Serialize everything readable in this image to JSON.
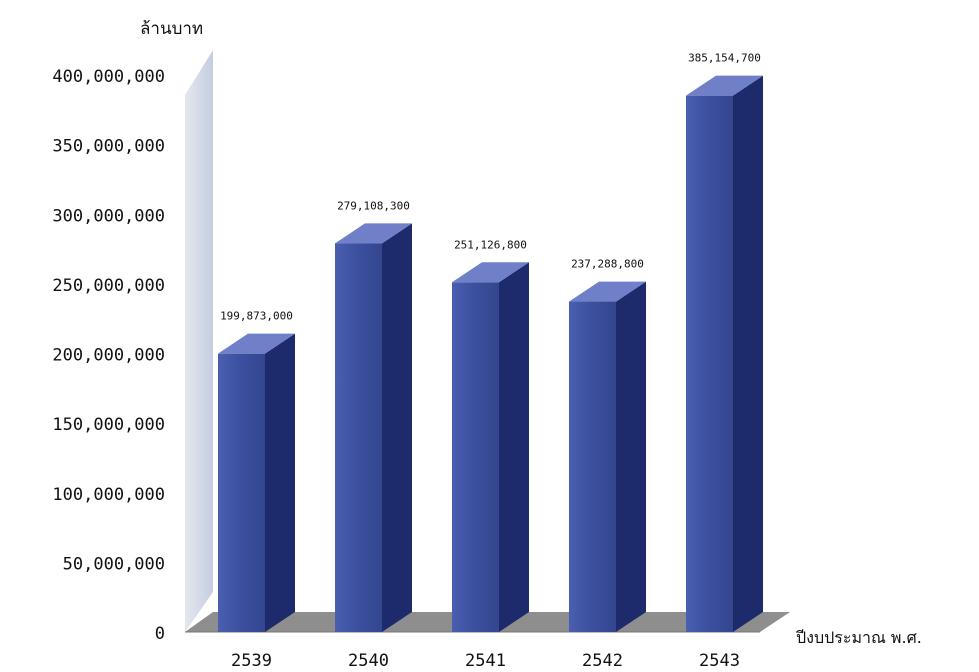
{
  "chart_data": {
    "type": "bar",
    "ylabel": "ล้านบาท",
    "xlabel": "ปีงบประมาณ พ.ศ.",
    "ylim": [
      0,
      400000000
    ],
    "yticks": [
      {
        "value": 0,
        "label": "0"
      },
      {
        "value": 50000000,
        "label": "50,000,000"
      },
      {
        "value": 100000000,
        "label": "100,000,000"
      },
      {
        "value": 150000000,
        "label": "150,000,000"
      },
      {
        "value": 200000000,
        "label": "200,000,000"
      },
      {
        "value": 250000000,
        "label": "250,000,000"
      },
      {
        "value": 300000000,
        "label": "300,000,000"
      },
      {
        "value": 350000000,
        "label": "350,000,000"
      },
      {
        "value": 400000000,
        "label": "400,000,000"
      }
    ],
    "categories": [
      "2539",
      "2540",
      "2541",
      "2542",
      "2543"
    ],
    "values": [
      199873000,
      279108300,
      251126800,
      237288800,
      385154700
    ],
    "value_labels": [
      "199,873,000",
      "279,108,300",
      "251,126,800",
      "237,288,800",
      "385,154,700"
    ],
    "colors": {
      "bar_front": "#3b4f9e",
      "bar_side": "#1d2a6b",
      "bar_top": "#6f80c8",
      "wall": "#d3d9e7",
      "floor": "#8e8e8e"
    }
  }
}
